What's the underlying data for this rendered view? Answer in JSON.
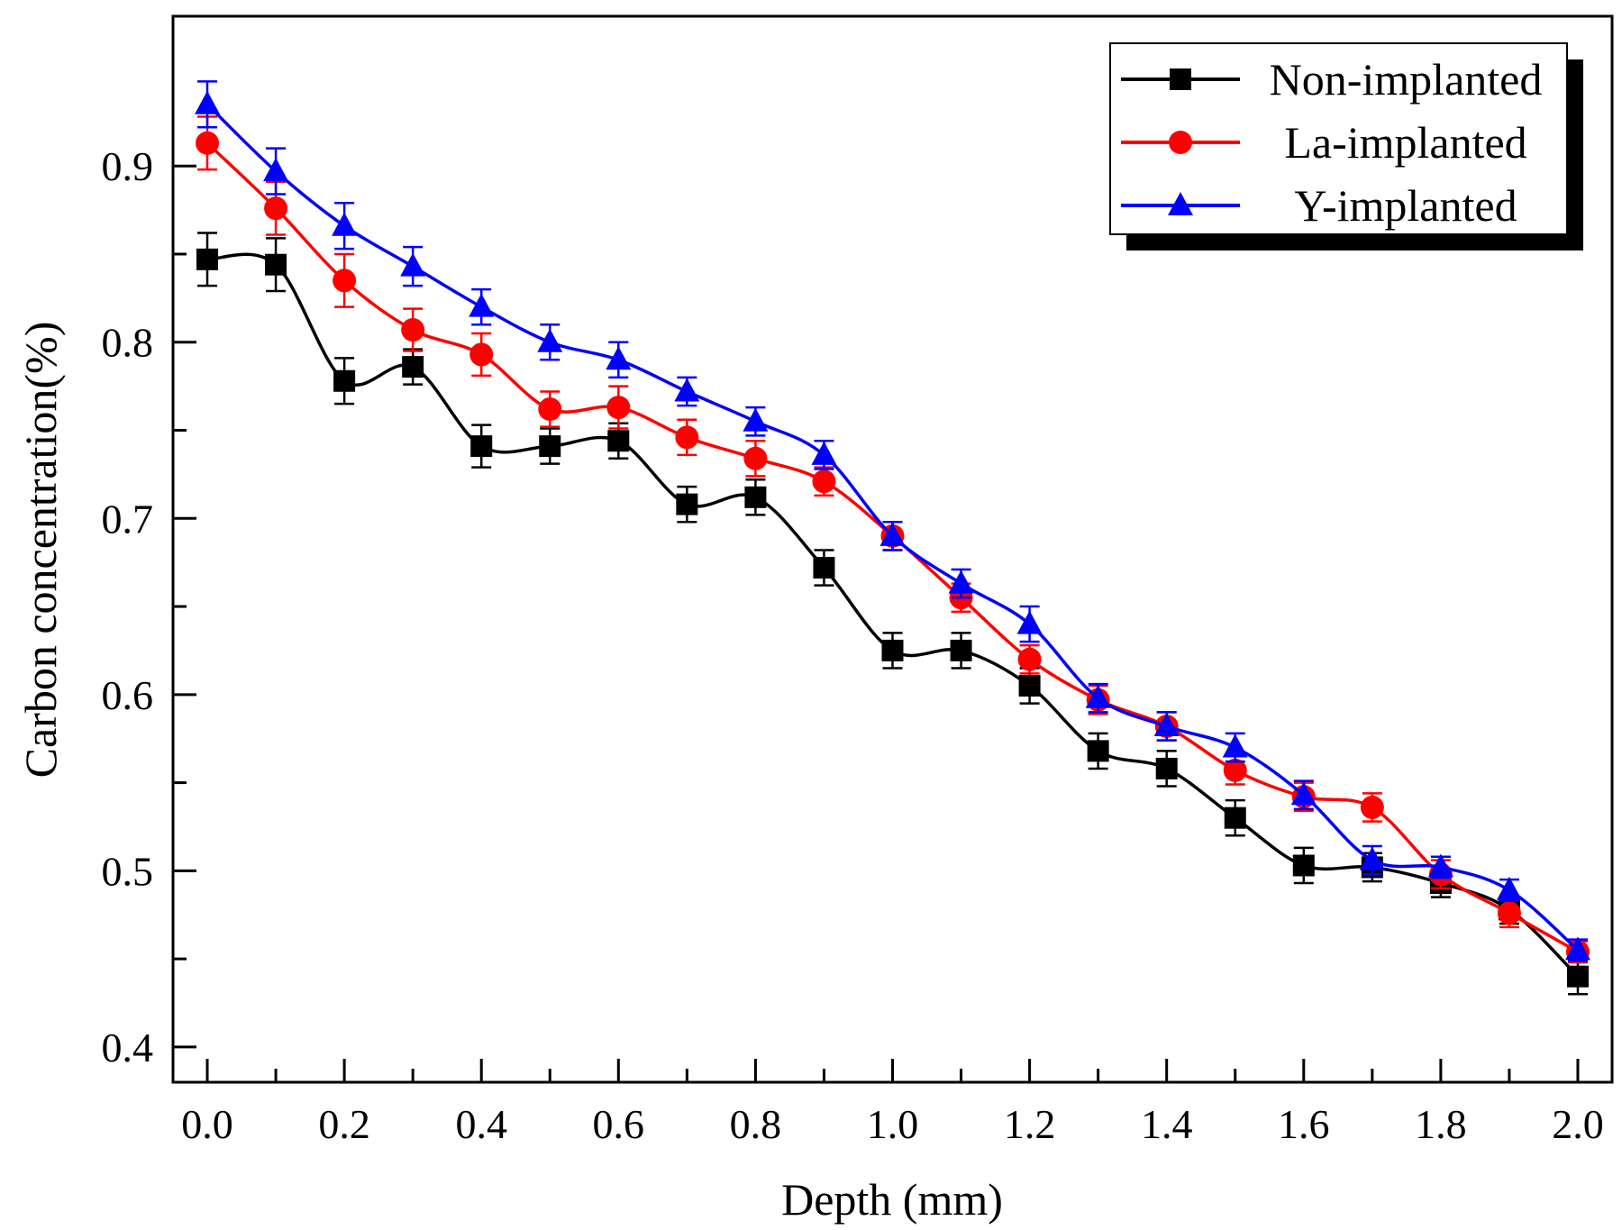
{
  "chart_data": {
    "type": "line",
    "title": "",
    "xlabel": "Depth (mm)",
    "ylabel": "Carbon concentration(%)",
    "xlim": [
      -0.05,
      2.05
    ],
    "ylim": [
      0.38,
      0.985
    ],
    "xticks": [
      "0.0",
      "0.2",
      "0.4",
      "0.6",
      "0.8",
      "1.0",
      "1.2",
      "1.4",
      "1.6",
      "1.8",
      "2.0"
    ],
    "yticks": [
      "0.4",
      "0.5",
      "0.6",
      "0.7",
      "0.8",
      "0.9"
    ],
    "legend_position": "top-right",
    "x": [
      0.0,
      0.1,
      0.2,
      0.3,
      0.4,
      0.5,
      0.6,
      0.7,
      0.8,
      0.9,
      1.0,
      1.1,
      1.2,
      1.3,
      1.4,
      1.5,
      1.6,
      1.7,
      1.8,
      1.9,
      2.0
    ],
    "series": [
      {
        "name": "Non-implanted",
        "color": "#000000",
        "marker": "square",
        "values": [
          0.847,
          0.844,
          0.778,
          0.786,
          0.741,
          0.741,
          0.744,
          0.708,
          0.712,
          0.672,
          0.625,
          0.625,
          0.605,
          0.568,
          0.558,
          0.53,
          0.503,
          0.502,
          0.493,
          0.478,
          0.44
        ],
        "errors": [
          0.015,
          0.015,
          0.013,
          0.01,
          0.012,
          0.01,
          0.01,
          0.01,
          0.01,
          0.01,
          0.01,
          0.01,
          0.01,
          0.01,
          0.01,
          0.01,
          0.01,
          0.008,
          0.008,
          0.008,
          0.01
        ]
      },
      {
        "name": "La-implanted",
        "color": "#ff0000",
        "marker": "circle",
        "values": [
          0.913,
          0.876,
          0.835,
          0.807,
          0.793,
          0.762,
          0.763,
          0.746,
          0.734,
          0.721,
          0.69,
          0.655,
          0.62,
          0.597,
          0.582,
          0.557,
          0.542,
          0.536,
          0.498,
          0.476,
          0.454
        ],
        "errors": [
          0.015,
          0.015,
          0.015,
          0.012,
          0.012,
          0.01,
          0.012,
          0.01,
          0.01,
          0.008,
          0.008,
          0.008,
          0.008,
          0.008,
          0.008,
          0.008,
          0.008,
          0.008,
          0.008,
          0.008,
          0.006
        ]
      },
      {
        "name": "Y-implanted",
        "color": "#0000ff",
        "marker": "triangle",
        "values": [
          0.935,
          0.897,
          0.866,
          0.843,
          0.82,
          0.8,
          0.79,
          0.772,
          0.755,
          0.736,
          0.69,
          0.663,
          0.64,
          0.598,
          0.582,
          0.57,
          0.543,
          0.506,
          0.502,
          0.489,
          0.455
        ],
        "errors": [
          0.013,
          0.013,
          0.013,
          0.011,
          0.01,
          0.01,
          0.01,
          0.008,
          0.008,
          0.008,
          0.008,
          0.008,
          0.01,
          0.008,
          0.008,
          0.008,
          0.008,
          0.008,
          0.006,
          0.006,
          0.006
        ]
      }
    ]
  }
}
